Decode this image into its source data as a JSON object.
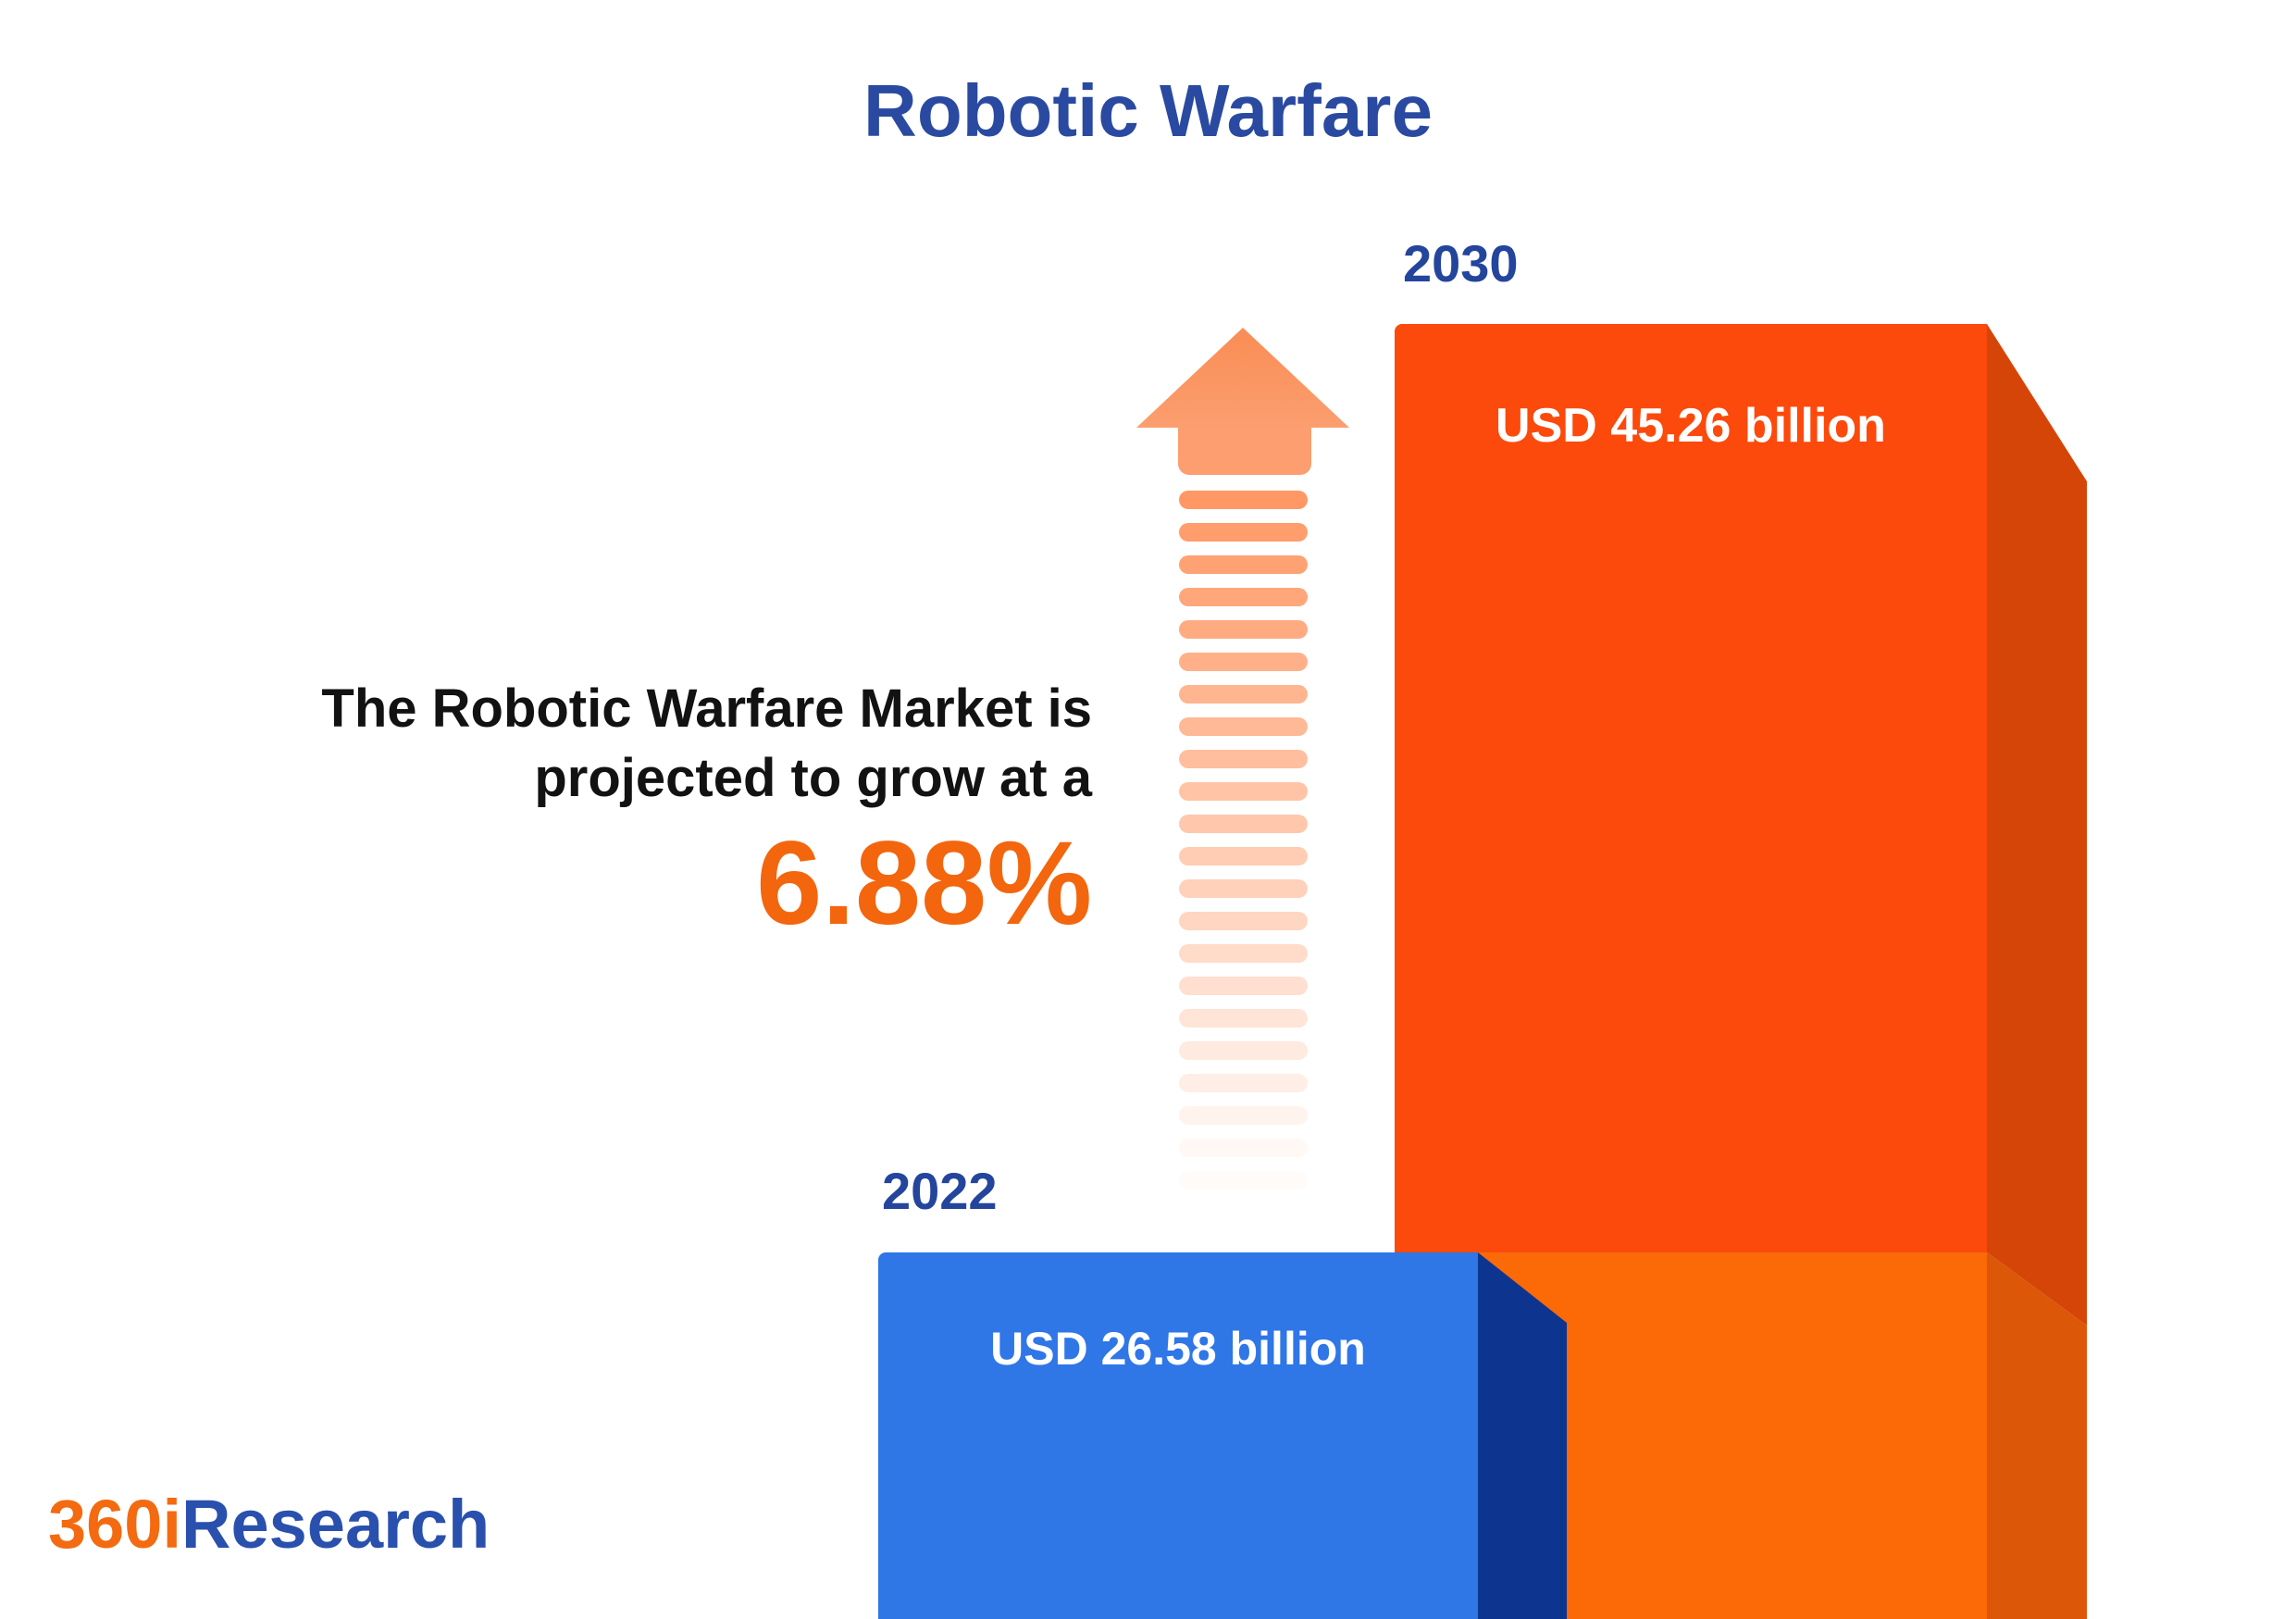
{
  "title": "Robotic Warfare",
  "title_color": "#2A4AA1",
  "year_label_color": "#24459C",
  "chart_data": {
    "type": "bar",
    "title": "Robotic Warfare",
    "categories": [
      "2022",
      "2030"
    ],
    "values": [
      26.58,
      45.26
    ],
    "unit": "USD billion",
    "value_labels": [
      "USD 26.58 billion",
      "USD 45.26 billion"
    ],
    "bar_colors": [
      "#2F76E7",
      "#FB4A0B"
    ],
    "annotation": "The Robotic Warfare Market is projected to grow at a 6.88%",
    "growth_rate": "6.88%",
    "legend": false,
    "gridlines": false
  },
  "bars": {
    "b2030": {
      "year_label": "2030",
      "value_label": "USD 45.26 billion",
      "front_color": "#FB4A0B",
      "front_color_lower": "#FB6A07",
      "side_color": "#D64508",
      "side_color_lower": "#DC5708"
    },
    "b2022": {
      "year_label": "2022",
      "value_label": "USD 26.58 billion",
      "front_color": "#2F76E7",
      "side_color": "#0D3590"
    }
  },
  "growth_text": {
    "line1": "The Robotic Warfare Market is",
    "line2": "projected to grow at a",
    "rate": "6.88%",
    "rate_color": "#F3660D",
    "text_color": "#121212"
  },
  "arrow": {
    "icon": "growth-arrow-icon",
    "head_color": "#FA9162",
    "dash_color": "#FF9560",
    "dash_count": 22
  },
  "logo": {
    "prefix": "360i",
    "suffix": "Research",
    "prefix_color": "#F36A10",
    "suffix_color": "#2A50AE"
  }
}
